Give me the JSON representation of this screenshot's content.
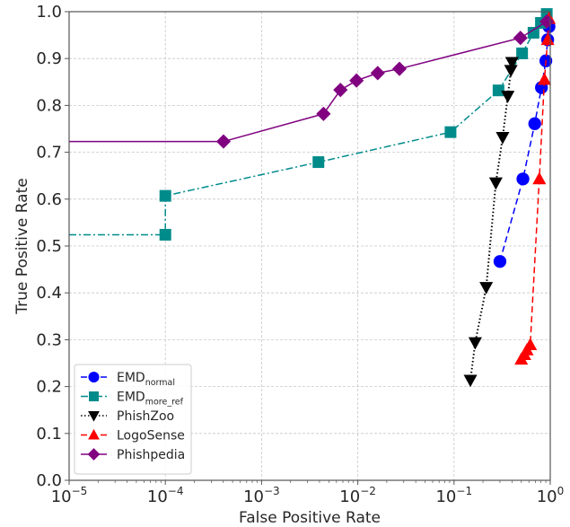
{
  "chart_data": {
    "type": "line",
    "title": "",
    "xlabel": "False Positive Rate",
    "ylabel": "True Positive Rate",
    "xscale": "log",
    "xlim": [
      1e-05,
      1
    ],
    "ylim": [
      0.0,
      1.0
    ],
    "grid": true,
    "legend_position": "bottom-left",
    "x_ticks": [
      {
        "base": "10",
        "exp": "−5",
        "value": 1e-05
      },
      {
        "base": "10",
        "exp": "−4",
        "value": 0.0001
      },
      {
        "base": "10",
        "exp": "−3",
        "value": 0.001
      },
      {
        "base": "10",
        "exp": "−2",
        "value": 0.01
      },
      {
        "base": "10",
        "exp": "−1",
        "value": 0.1
      },
      {
        "base": "10",
        "exp": "0",
        "value": 1
      }
    ],
    "y_ticks": [
      "0.0",
      "0.1",
      "0.2",
      "0.3",
      "0.4",
      "0.5",
      "0.6",
      "0.7",
      "0.8",
      "0.9",
      "1.0"
    ],
    "series": [
      {
        "name": "EMD",
        "name_sub": "normal",
        "color": "#0000ff",
        "linestyle": "dashed",
        "marker": "circle",
        "x": [
          0.3,
          0.52,
          0.69,
          0.81,
          0.9,
          0.94,
          0.97
        ],
        "y": [
          0.467,
          0.643,
          0.761,
          0.838,
          0.895,
          0.94,
          0.968
        ]
      },
      {
        "name": "EMD",
        "name_sub": "more_ref",
        "color": "#008b8b",
        "linestyle": "dashdot",
        "marker": "square",
        "x": [
          1e-05,
          0.0001,
          0.0001,
          0.0039,
          0.092,
          0.29,
          0.51,
          0.67,
          0.8,
          0.92
        ],
        "y": [
          0.524,
          0.524,
          0.607,
          0.679,
          0.743,
          0.832,
          0.911,
          0.955,
          0.976,
          0.995
        ],
        "marker_skip_first": true
      },
      {
        "name": "PhishZoo",
        "name_sub": "",
        "color": "#000000",
        "linestyle": "dotted",
        "marker": "triangle-down",
        "x": [
          0.148,
          0.166,
          0.216,
          0.272,
          0.32,
          0.362,
          0.39,
          0.4
        ],
        "y": [
          0.214,
          0.294,
          0.412,
          0.635,
          0.732,
          0.82,
          0.875,
          0.892
        ]
      },
      {
        "name": "LogoSense",
        "name_sub": "",
        "color": "#ff0000",
        "linestyle": "dashed",
        "marker": "triangle-up",
        "x": [
          0.5,
          0.54,
          0.572,
          0.62,
          0.77,
          0.87,
          0.94,
          0.97
        ],
        "y": [
          0.258,
          0.268,
          0.278,
          0.289,
          0.643,
          0.855,
          0.94,
          0.985
        ]
      },
      {
        "name": "Phishpedia",
        "name_sub": "",
        "color": "#800080",
        "linestyle": "solid",
        "marker": "diamond",
        "x": [
          1e-05,
          0.000402,
          0.0044,
          0.0066,
          0.0097,
          0.0161,
          0.0271,
          0.49,
          0.92
        ],
        "y": [
          0.723,
          0.723,
          0.782,
          0.833,
          0.853,
          0.869,
          0.878,
          0.944,
          0.979
        ],
        "marker_skip_first": true
      }
    ]
  }
}
